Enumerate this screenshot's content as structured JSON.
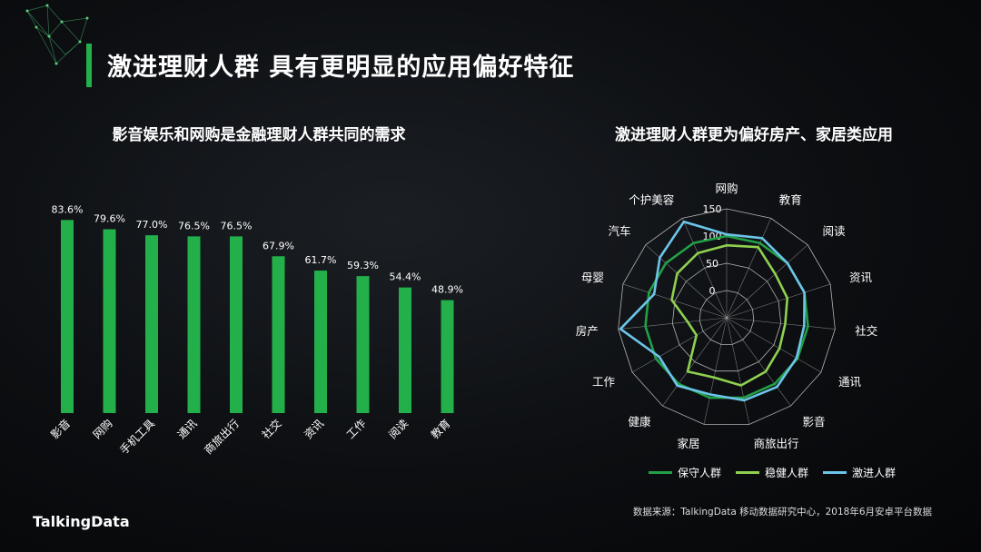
{
  "page": {
    "title": "激进理财人群 具有更明显的应用偏好特征",
    "source": "数据来源：TalkingData 移动数据研究中心，2018年6月安卓平台数据",
    "brand": "TalkingData"
  },
  "colors": {
    "bar": "#23b04a",
    "conservative": "#23a046",
    "steady": "#8fd14f",
    "aggressive": "#6cc4e8",
    "accent": "#23b04a"
  },
  "chart_data": [
    {
      "type": "bar",
      "title": "影音娱乐和网购是金融理财人群共同的需求",
      "categories": [
        "影音",
        "网购",
        "手机工具",
        "通讯",
        "商旅出行",
        "社交",
        "资讯",
        "工作",
        "阅读",
        "教育"
      ],
      "values": [
        83.6,
        79.6,
        77.0,
        76.5,
        76.5,
        67.9,
        61.7,
        59.3,
        54.4,
        48.9
      ],
      "value_labels": [
        "83.6%",
        "79.6%",
        "77.0%",
        "76.5%",
        "76.5%",
        "67.9%",
        "61.7%",
        "59.3%",
        "54.4%",
        "48.9%"
      ],
      "ylim": [
        0,
        100
      ],
      "xlabel": "",
      "ylabel": ""
    },
    {
      "type": "radar",
      "title": "激进理财人群更为偏好房产、家居类应用",
      "axes": [
        "网购",
        "教育",
        "阅读",
        "资讯",
        "社交",
        "通讯",
        "影音",
        "商旅出行",
        "家居",
        "健康",
        "工作",
        "房产",
        "母婴",
        "汽车",
        "个护美容"
      ],
      "ticks": [
        0,
        50,
        100,
        150
      ],
      "tick_labels": [
        "0",
        "50",
        "100",
        "150"
      ],
      "rlim": [
        -50,
        150
      ],
      "legend_position": "bottom",
      "series": [
        {
          "name": "保守人群",
          "values": [
            100,
            100,
            100,
            100,
            100,
            100,
            100,
            100,
            100,
            100,
            100,
            100,
            100,
            100,
            100
          ]
        },
        {
          "name": "稳健人群",
          "values": [
            83,
            92,
            70,
            67,
            58,
            62,
            72,
            77,
            62,
            72,
            14,
            22,
            56,
            72,
            80
          ]
        },
        {
          "name": "激进人群",
          "values": [
            103,
            110,
            100,
            100,
            93,
            98,
            107,
            105,
            94,
            104,
            93,
            146,
            90,
            115,
            143
          ]
        }
      ]
    }
  ]
}
